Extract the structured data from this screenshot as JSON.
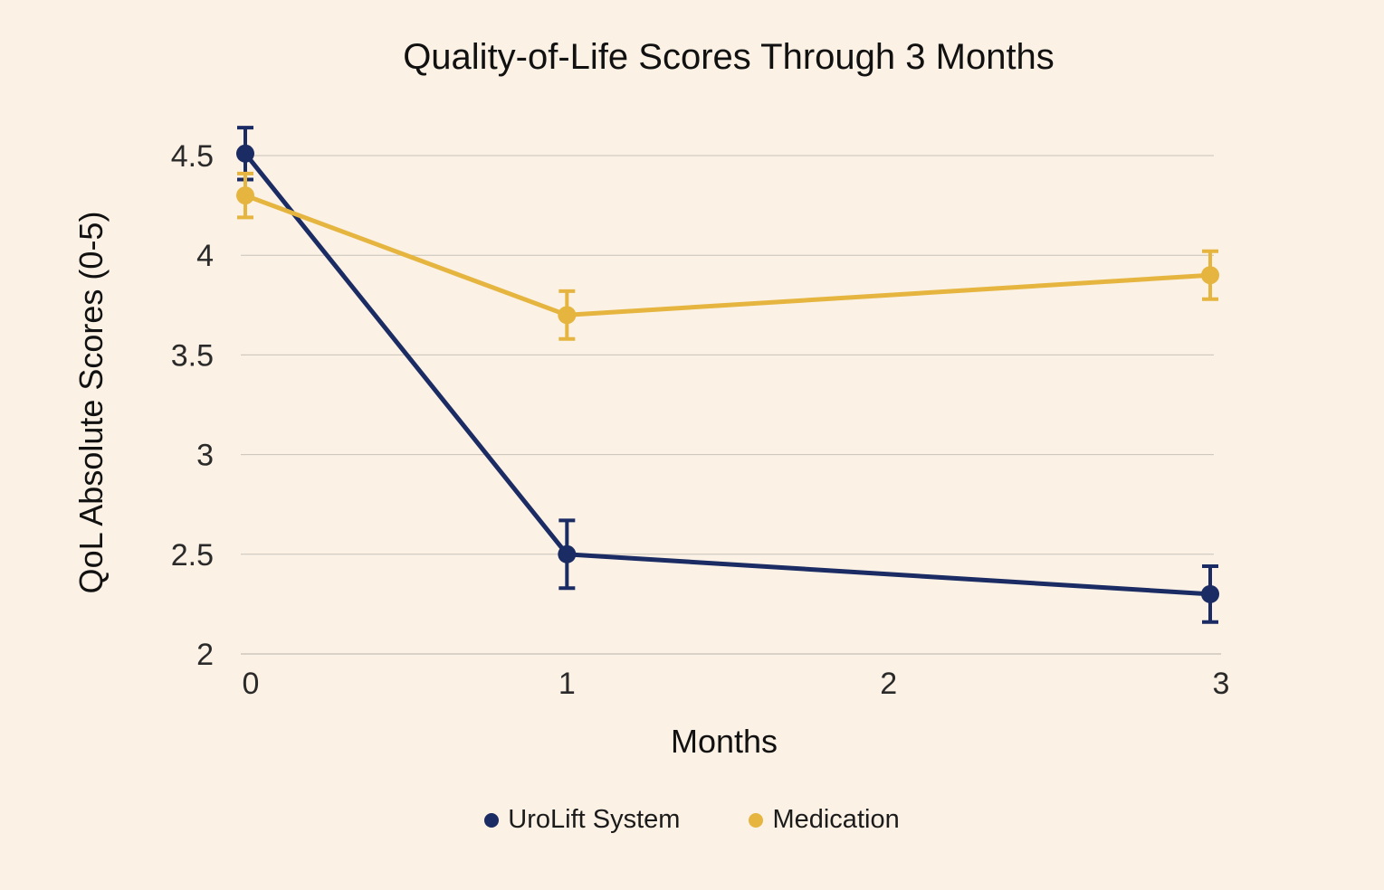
{
  "chart_data": {
    "type": "line",
    "title": "Quality-of-Life Scores Through 3 Months",
    "xlabel": "Months",
    "ylabel": "QoL Absolute Scores (0-5)",
    "x": [
      0,
      1,
      3
    ],
    "x_ticks": [
      "0",
      "1",
      "2",
      "3"
    ],
    "x_tick_values": [
      0,
      1,
      2,
      3
    ],
    "xlim": [
      0,
      3
    ],
    "ylim": [
      2,
      4.5
    ],
    "y_ticks": [
      "2",
      "2.5",
      "3",
      "3.5",
      "4",
      "4.5"
    ],
    "y_tick_values": [
      2,
      2.5,
      3,
      3.5,
      4,
      4.5
    ],
    "grid": true,
    "legend_position": "bottom",
    "series": [
      {
        "name": "UroLift System",
        "color": "#1b2b63",
        "values": [
          4.51,
          2.5,
          2.3
        ],
        "error": [
          0.13,
          0.17,
          0.14
        ]
      },
      {
        "name": "Medication",
        "color": "#e5b53f",
        "values": [
          4.3,
          3.7,
          3.9
        ],
        "error": [
          0.11,
          0.12,
          0.12
        ]
      }
    ]
  }
}
